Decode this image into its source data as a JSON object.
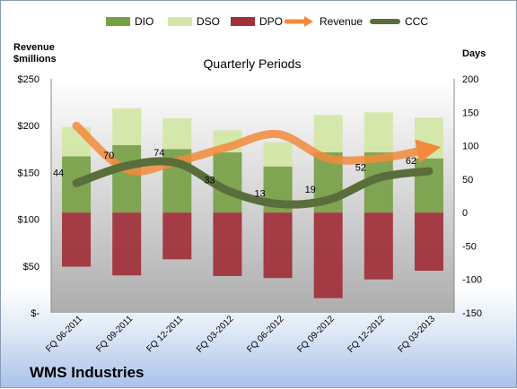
{
  "chart_data": {
    "type": "bar",
    "title": "Quarterly Periods",
    "company": "WMS Industries",
    "y_left_label": [
      "Revenue",
      "$millions"
    ],
    "y_right_label": "Days",
    "categories": [
      "FQ 06-2011",
      "FQ 09-2011",
      "FQ 12-2011",
      "FQ 03-2012",
      "FQ 06-2012",
      "FQ 09-2012",
      "FQ 12-2012",
      "FQ 03-2013"
    ],
    "y_left": {
      "min": 0,
      "max": 250,
      "step": 50,
      "tick_labels": [
        "$-",
        "$50",
        "$100",
        "$150",
        "$200",
        "$250"
      ]
    },
    "y_right": {
      "min": -150,
      "max": 200,
      "step": 50,
      "tick_labels": [
        "-150",
        "-100",
        "-50",
        "0",
        "50",
        "100",
        "150",
        "200"
      ]
    },
    "series": [
      {
        "name": "DIO",
        "kind": "stacked-bar",
        "axis": "days",
        "color": "#77a046",
        "values": [
          84,
          101,
          95,
          90,
          69,
          90,
          90,
          81
        ]
      },
      {
        "name": "DSO",
        "kind": "stacked-bar",
        "axis": "days",
        "color": "#d4e6a5",
        "values": [
          44,
          55,
          46,
          33,
          36,
          56,
          60,
          61
        ]
      },
      {
        "name": "DPO",
        "kind": "bar",
        "axis": "days",
        "color": "#a0303a",
        "values": [
          -81,
          -94,
          -70,
          -95,
          -98,
          -128,
          -100,
          -87
        ]
      },
      {
        "name": "Revenue",
        "kind": "line",
        "axis": "revenue",
        "color": "#f28a3c",
        "values": [
          200,
          153,
          162,
          177,
          191,
          165,
          165,
          175
        ]
      },
      {
        "name": "CCC",
        "kind": "line",
        "axis": "days",
        "color": "#5a6e3b",
        "values": [
          44,
          70,
          74,
          33,
          13,
          19,
          52,
          62
        ]
      }
    ],
    "data_labels": [
      "44",
      "70",
      "74",
      "33",
      "13",
      "19",
      "52",
      "62"
    ],
    "grid": false,
    "legend_position": "top"
  }
}
